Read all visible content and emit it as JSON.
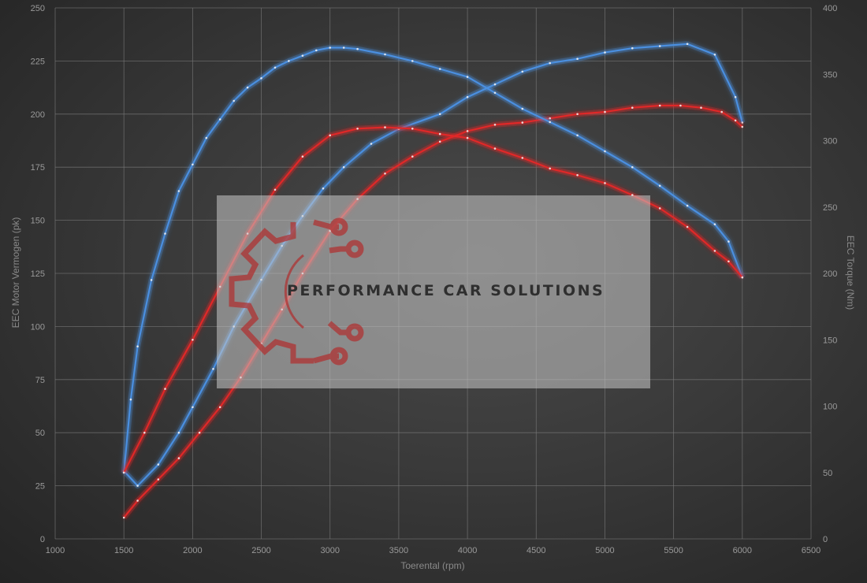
{
  "chart_data": {
    "type": "line",
    "xlabel": "Toerental (rpm)",
    "ylabel_left": "EEC Motor Vermogen (pk)",
    "ylabel_right": "EEC Torque (Nm)",
    "xlim": [
      1000,
      6500
    ],
    "xticks": [
      1000,
      1500,
      2000,
      2500,
      3000,
      3500,
      4000,
      4500,
      5000,
      5500,
      6000,
      6500
    ],
    "ylim_left": [
      0,
      250
    ],
    "yticks_left": [
      0,
      25,
      50,
      75,
      100,
      125,
      150,
      175,
      200,
      225,
      250
    ],
    "ylim_right": [
      0,
      400
    ],
    "yticks_right": [
      0,
      50,
      100,
      150,
      200,
      250,
      300,
      350,
      400
    ],
    "grid": true,
    "series": [
      {
        "axis": "left",
        "color": "#4a8fe0",
        "x": [
          1500,
          1600,
          1750,
          1900,
          2000,
          2150,
          2300,
          2500,
          2650,
          2800,
          2950,
          3100,
          3300,
          3500,
          3800,
          4000,
          4200,
          4400,
          4600,
          4800,
          5000,
          5200,
          5400,
          5600,
          5800,
          5950,
          6000
        ],
        "y": [
          32,
          25,
          35,
          50,
          62,
          80,
          100,
          122,
          138,
          152,
          165,
          175,
          186,
          193,
          200,
          208,
          214,
          220,
          224,
          226,
          229,
          231,
          232,
          233,
          228,
          208,
          196
        ]
      },
      {
        "axis": "left",
        "color": "#e02828",
        "x": [
          1500,
          1600,
          1750,
          1900,
          2050,
          2200,
          2350,
          2500,
          2650,
          2800,
          3000,
          3200,
          3400,
          3600,
          3800,
          4000,
          4200,
          4400,
          4600,
          4800,
          5000,
          5200,
          5400,
          5550,
          5700,
          5850,
          5950,
          6000
        ],
        "y": [
          10,
          18,
          28,
          38,
          50,
          62,
          76,
          92,
          108,
          125,
          145,
          160,
          172,
          180,
          187,
          192,
          195,
          196,
          198,
          200,
          201,
          203,
          204,
          204,
          203,
          201,
          197,
          194
        ]
      },
      {
        "axis": "right",
        "color": "#4a8fe0",
        "x": [
          1500,
          1550,
          1600,
          1700,
          1800,
          1900,
          2000,
          2100,
          2200,
          2300,
          2400,
          2500,
          2600,
          2700,
          2800,
          2900,
          3000,
          3100,
          3200,
          3400,
          3600,
          3800,
          4000,
          4200,
          4400,
          4600,
          4800,
          5000,
          5200,
          5400,
          5600,
          5800,
          5900,
          6000
        ],
        "y": [
          50,
          105,
          145,
          195,
          230,
          262,
          282,
          302,
          316,
          330,
          340,
          347,
          355,
          360,
          364,
          368,
          370,
          370,
          369,
          365,
          360,
          354,
          348,
          336,
          324,
          314,
          304,
          292,
          280,
          266,
          251,
          237,
          224,
          197
        ]
      },
      {
        "axis": "right",
        "color": "#e02828",
        "x": [
          1500,
          1650,
          1800,
          2000,
          2200,
          2400,
          2600,
          2800,
          3000,
          3200,
          3400,
          3600,
          3800,
          4000,
          4200,
          4400,
          4600,
          4800,
          5000,
          5200,
          5400,
          5600,
          5800,
          5900,
          6000
        ],
        "y": [
          50,
          80,
          113,
          150,
          190,
          230,
          263,
          288,
          304,
          309,
          310,
          309,
          305,
          302,
          294,
          287,
          279,
          274,
          268,
          259,
          249,
          235,
          217,
          209,
          197
        ]
      }
    ]
  },
  "watermark": {
    "text": "PERFORMANCE CAR SOLUTIONS",
    "logo_icon": "gear-circuit-logo-icon",
    "logo_color": "#b03030"
  }
}
